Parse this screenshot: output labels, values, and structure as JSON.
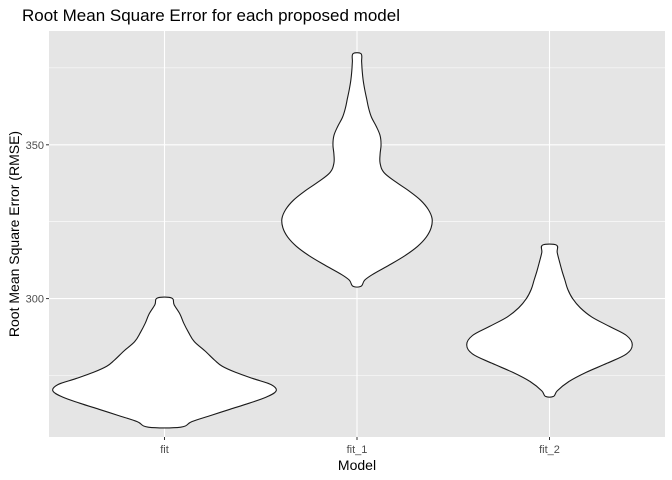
{
  "chart_data": {
    "type": "violin",
    "title": "Root Mean Square Error for each proposed model",
    "xlabel": "Model",
    "ylabel": "Root Mean Square Error (RMSE)",
    "categories": [
      "fit",
      "fit_1",
      "fit_2"
    ],
    "ylim": [
      255,
      387
    ],
    "yticks": [
      300,
      350
    ],
    "grid": true,
    "background": "#e5e5e5",
    "gridline_color": "#ffffff",
    "violin_fill": "#ffffff",
    "violin_stroke": "#1a1a1a",
    "violins": [
      {
        "category": "fit",
        "profile": [
          {
            "y": 258.2,
            "halfwidth": 0.084
          },
          {
            "y": 260,
            "halfwidth": 0.142
          },
          {
            "y": 262,
            "halfwidth": 0.24
          },
          {
            "y": 264,
            "halfwidth": 0.34
          },
          {
            "y": 266,
            "halfwidth": 0.44
          },
          {
            "y": 268,
            "halfwidth": 0.53
          },
          {
            "y": 270,
            "halfwidth": 0.58
          },
          {
            "y": 272,
            "halfwidth": 0.555
          },
          {
            "y": 274,
            "halfwidth": 0.46
          },
          {
            "y": 276,
            "halfwidth": 0.37
          },
          {
            "y": 278,
            "halfwidth": 0.3
          },
          {
            "y": 280,
            "halfwidth": 0.26
          },
          {
            "y": 283,
            "halfwidth": 0.21
          },
          {
            "y": 286,
            "halfwidth": 0.155
          },
          {
            "y": 289,
            "halfwidth": 0.125
          },
          {
            "y": 292,
            "halfwidth": 0.1
          },
          {
            "y": 295,
            "halfwidth": 0.08
          },
          {
            "y": 298,
            "halfwidth": 0.05
          },
          {
            "y": 300.2,
            "halfwidth": 0.037
          }
        ]
      },
      {
        "category": "fit_1",
        "profile": [
          {
            "y": 304,
            "halfwidth": 0.021
          },
          {
            "y": 306,
            "halfwidth": 0.04
          },
          {
            "y": 308,
            "halfwidth": 0.085
          },
          {
            "y": 311,
            "halfwidth": 0.17
          },
          {
            "y": 314,
            "halfwidth": 0.25
          },
          {
            "y": 317,
            "halfwidth": 0.315
          },
          {
            "y": 320,
            "halfwidth": 0.36
          },
          {
            "y": 323,
            "halfwidth": 0.385
          },
          {
            "y": 326,
            "halfwidth": 0.39
          },
          {
            "y": 329,
            "halfwidth": 0.37
          },
          {
            "y": 332,
            "halfwidth": 0.33
          },
          {
            "y": 335,
            "halfwidth": 0.27
          },
          {
            "y": 338,
            "halfwidth": 0.2
          },
          {
            "y": 341,
            "halfwidth": 0.14
          },
          {
            "y": 344,
            "halfwidth": 0.12
          },
          {
            "y": 347,
            "halfwidth": 0.12
          },
          {
            "y": 350,
            "halfwidth": 0.125
          },
          {
            "y": 353,
            "halfwidth": 0.12
          },
          {
            "y": 356,
            "halfwidth": 0.1
          },
          {
            "y": 359,
            "halfwidth": 0.075
          },
          {
            "y": 362,
            "halfwidth": 0.06
          },
          {
            "y": 365,
            "halfwidth": 0.05
          },
          {
            "y": 368,
            "halfwidth": 0.04
          },
          {
            "y": 371,
            "halfwidth": 0.032
          },
          {
            "y": 374,
            "halfwidth": 0.027
          },
          {
            "y": 377,
            "halfwidth": 0.024
          },
          {
            "y": 379.6,
            "halfwidth": 0.021
          }
        ]
      },
      {
        "category": "fit_2",
        "profile": [
          {
            "y": 268.2,
            "halfwidth": 0.021
          },
          {
            "y": 270,
            "halfwidth": 0.04
          },
          {
            "y": 273,
            "halfwidth": 0.1
          },
          {
            "y": 276,
            "halfwidth": 0.19
          },
          {
            "y": 279,
            "halfwidth": 0.3
          },
          {
            "y": 282,
            "halfwidth": 0.4
          },
          {
            "y": 285,
            "halfwidth": 0.43
          },
          {
            "y": 288,
            "halfwidth": 0.4
          },
          {
            "y": 291,
            "halfwidth": 0.31
          },
          {
            "y": 294,
            "halfwidth": 0.22
          },
          {
            "y": 297,
            "halfwidth": 0.16
          },
          {
            "y": 300,
            "halfwidth": 0.12
          },
          {
            "y": 303,
            "halfwidth": 0.095
          },
          {
            "y": 306,
            "halfwidth": 0.08
          },
          {
            "y": 309,
            "halfwidth": 0.065
          },
          {
            "y": 312,
            "halfwidth": 0.052
          },
          {
            "y": 315,
            "halfwidth": 0.04
          },
          {
            "y": 317.4,
            "halfwidth": 0.036
          }
        ]
      }
    ]
  }
}
